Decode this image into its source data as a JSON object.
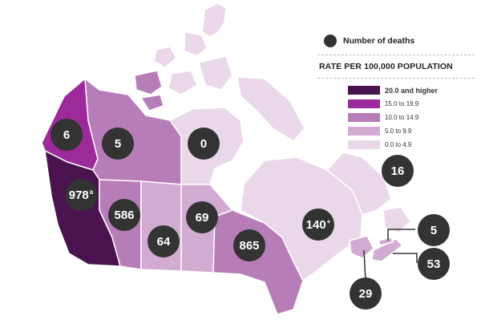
{
  "legend": {
    "deaths_label": "Number of deaths",
    "rate_title": "RATE PER 100,000 POPULATION",
    "classes": [
      {
        "label": "20.0 and higher",
        "color": "#4a1350"
      },
      {
        "label": "15.0 to 19.9",
        "color": "#9c2a9a"
      },
      {
        "label": "10.0 to 14.9",
        "color": "#b77db8"
      },
      {
        "label": "5.0 to 9.9",
        "color": "#d2abd2"
      },
      {
        "label": "0.0 to 4.9",
        "color": "#ead8ea"
      }
    ]
  },
  "regions": [
    {
      "name": "Yukon",
      "deaths": "6",
      "note": "",
      "rate_class": 1
    },
    {
      "name": "Northwest Territories",
      "deaths": "5",
      "note": "",
      "rate_class": 2
    },
    {
      "name": "Nunavut",
      "deaths": "0",
      "note": "",
      "rate_class": 4
    },
    {
      "name": "British Columbia",
      "deaths": "978",
      "note": "a",
      "rate_class": 0
    },
    {
      "name": "Alberta",
      "deaths": "586",
      "note": "",
      "rate_class": 2
    },
    {
      "name": "Saskatchewan",
      "deaths": "64",
      "note": "",
      "rate_class": 3
    },
    {
      "name": "Manitoba",
      "deaths": "69",
      "note": "",
      "rate_class": 3
    },
    {
      "name": "Ontario",
      "deaths": "865",
      "note": "",
      "rate_class": 2
    },
    {
      "name": "Quebec",
      "deaths": "140",
      "note": "+",
      "rate_class": 4
    },
    {
      "name": "Newfoundland and Labrador",
      "deaths": "16",
      "note": "",
      "rate_class": 4
    },
    {
      "name": "Prince Edward Island",
      "deaths": "5",
      "note": "",
      "rate_class": 3
    },
    {
      "name": "Nova Scotia",
      "deaths": "53",
      "note": "",
      "rate_class": 3
    },
    {
      "name": "New Brunswick",
      "deaths": "29",
      "note": "",
      "rate_class": 3
    }
  ]
}
